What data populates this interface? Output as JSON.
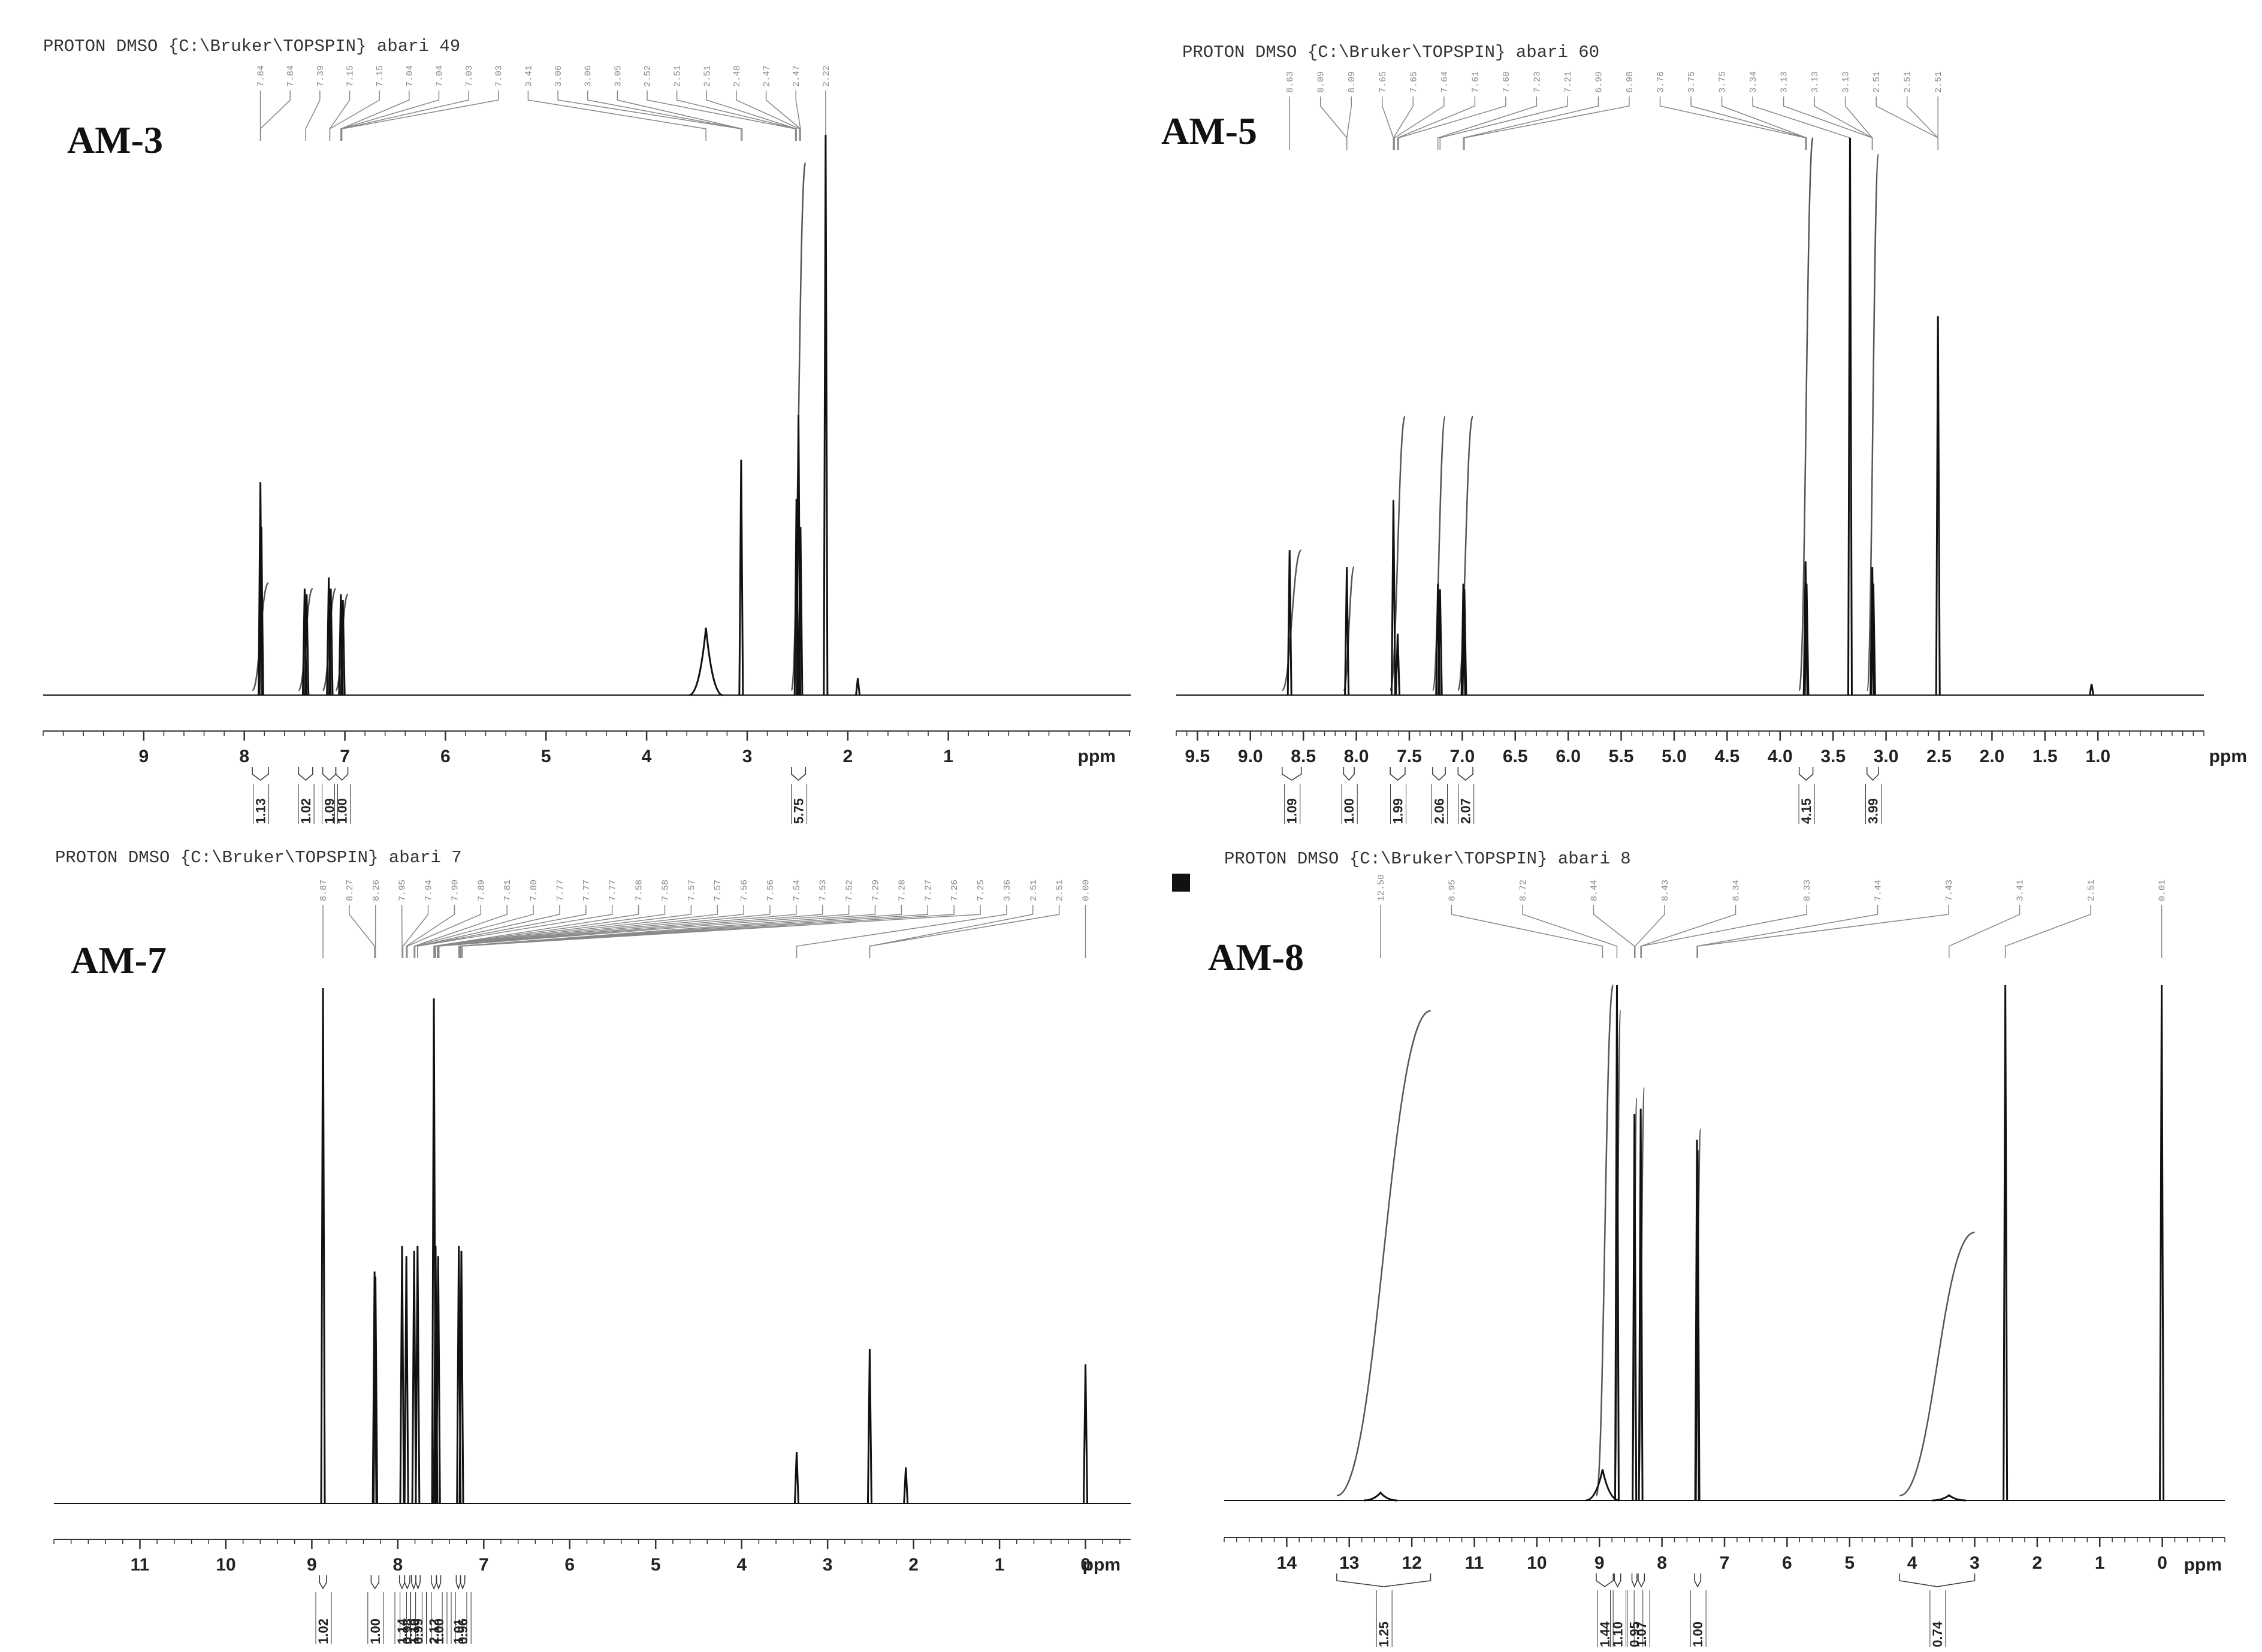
{
  "colors": {
    "spectrum": "#111111",
    "integral": "#555555",
    "peak_label": "#888888",
    "axis": "#333333"
  },
  "figure": {
    "panels": [
      {
        "header": "PROTON DMSO {C:\\Bruker\\TOPSPIN} abari 49",
        "compound": "AM-3",
        "unit": "ppm"
      },
      {
        "header": "PROTON DMSO {C:\\Bruker\\TOPSPIN} abari 60",
        "compound": "AM-5",
        "unit": "ppm"
      },
      {
        "header": "PROTON DMSO {C:\\Bruker\\TOPSPIN} abari 7",
        "compound": "AM-7",
        "unit": "ppm"
      },
      {
        "header": "PROTON DMSO {C:\\Bruker\\TOPSPIN} abari 8",
        "compound": "AM-8",
        "unit": "ppm"
      }
    ]
  },
  "chart_data": [
    {
      "type": "line",
      "title": "AM-3",
      "xlabel": "ppm",
      "xlim": [
        10.0,
        -0.98
      ],
      "x_reversed": true,
      "tick_labels": [
        "9",
        "8",
        "7",
        "6",
        "5",
        "4",
        "3",
        "2",
        "1"
      ],
      "peak_labels": [
        "7.84",
        "7.84",
        "7.39",
        "7.15",
        "7.15",
        "7.04",
        "7.04",
        "7.03",
        "7.03",
        "3.41",
        "3.06",
        "3.06",
        "3.05",
        "2.52",
        "2.51",
        "2.51",
        "2.48",
        "2.47",
        "2.47",
        "2.22"
      ],
      "peaks": [
        {
          "ppm": 7.84,
          "height": 0.38
        },
        {
          "ppm": 7.83,
          "height": 0.3
        },
        {
          "ppm": 7.4,
          "height": 0.19
        },
        {
          "ppm": 7.38,
          "height": 0.18
        },
        {
          "ppm": 7.16,
          "height": 0.21
        },
        {
          "ppm": 7.14,
          "height": 0.19
        },
        {
          "ppm": 7.04,
          "height": 0.18
        },
        {
          "ppm": 7.02,
          "height": 0.17
        },
        {
          "ppm": 3.41,
          "height": 0.12,
          "broad": true
        },
        {
          "ppm": 3.06,
          "height": 0.42
        },
        {
          "ppm": 2.51,
          "height": 0.35
        },
        {
          "ppm": 2.49,
          "height": 0.5
        },
        {
          "ppm": 2.47,
          "height": 0.3
        },
        {
          "ppm": 2.22,
          "height": 1.0
        },
        {
          "ppm": 1.9,
          "height": 0.03
        }
      ],
      "integrals": [
        {
          "from": 7.92,
          "to": 7.76,
          "value": "1.13",
          "height": 0.2
        },
        {
          "from": 7.46,
          "to": 7.32,
          "value": "1.02",
          "height": 0.19
        },
        {
          "from": 7.22,
          "to": 7.09,
          "value": "1.09",
          "height": 0.19
        },
        {
          "from": 7.09,
          "to": 6.97,
          "value": "1.00",
          "height": 0.18
        },
        {
          "from": 2.56,
          "to": 2.42,
          "value": "5.75",
          "height": 0.95
        }
      ]
    },
    {
      "type": "line",
      "title": "AM-5",
      "xlabel": "ppm",
      "xlim": [
        9.7,
        0.0
      ],
      "x_reversed": true,
      "tick_labels": [
        "9.5",
        "9.0",
        "8.5",
        "8.0",
        "7.5",
        "7.0",
        "6.5",
        "6.0",
        "5.5",
        "5.0",
        "4.5",
        "4.0",
        "3.5",
        "3.0",
        "2.5",
        "2.0",
        "1.5",
        "1.0"
      ],
      "peak_labels": [
        "8.63",
        "8.09",
        "8.09",
        "7.65",
        "7.65",
        "7.64",
        "7.61",
        "7.60",
        "7.23",
        "7.21",
        "6.99",
        "6.98",
        "3.76",
        "3.75",
        "3.75",
        "3.34",
        "3.13",
        "3.13",
        "3.13",
        "2.51",
        "2.51",
        "2.51"
      ],
      "peaks": [
        {
          "ppm": 8.63,
          "height": 0.26
        },
        {
          "ppm": 8.09,
          "height": 0.23
        },
        {
          "ppm": 7.65,
          "height": 0.35
        },
        {
          "ppm": 7.61,
          "height": 0.11
        },
        {
          "ppm": 7.23,
          "height": 0.2
        },
        {
          "ppm": 7.21,
          "height": 0.19
        },
        {
          "ppm": 6.99,
          "height": 0.2
        },
        {
          "ppm": 6.98,
          "height": 0.19
        },
        {
          "ppm": 3.76,
          "height": 0.24
        },
        {
          "ppm": 3.75,
          "height": 0.2
        },
        {
          "ppm": 3.34,
          "height": 1.0
        },
        {
          "ppm": 3.13,
          "height": 0.23
        },
        {
          "ppm": 3.12,
          "height": 0.2
        },
        {
          "ppm": 2.51,
          "height": 0.68
        },
        {
          "ppm": 1.06,
          "height": 0.02
        }
      ],
      "integrals": [
        {
          "from": 8.7,
          "to": 8.52,
          "value": "1.09",
          "height": 0.26
        },
        {
          "from": 8.12,
          "to": 8.02,
          "value": "1.00",
          "height": 0.23
        },
        {
          "from": 7.68,
          "to": 7.54,
          "value": "1.99",
          "height": 0.5
        },
        {
          "from": 7.28,
          "to": 7.16,
          "value": "2.06",
          "height": 0.5
        },
        {
          "from": 7.04,
          "to": 6.9,
          "value": "2.07",
          "height": 0.5
        },
        {
          "from": 3.82,
          "to": 3.69,
          "value": "4.15",
          "height": 1.0
        },
        {
          "from": 3.18,
          "to": 3.07,
          "value": "3.99",
          "height": 0.97
        }
      ]
    },
    {
      "type": "line",
      "title": "AM-7",
      "xlabel": "ppm",
      "xlim": [
        12.0,
        -1.0
      ],
      "x_reversed": true,
      "tick_labels": [
        "11",
        "10",
        "9",
        "8",
        "7",
        "6",
        "5",
        "4",
        "3",
        "2",
        "1",
        "0"
      ],
      "peak_labels": [
        "8.87",
        "8.27",
        "8.26",
        "7.95",
        "7.94",
        "7.90",
        "7.89",
        "7.81",
        "7.80",
        "7.77",
        "7.77",
        "7.77",
        "7.58",
        "7.58",
        "7.57",
        "7.57",
        "7.56",
        "7.56",
        "7.54",
        "7.53",
        "7.52",
        "7.29",
        "7.28",
        "7.27",
        "7.26",
        "7.25",
        "3.36",
        "2.51",
        "2.51",
        "0.00"
      ],
      "peaks": [
        {
          "ppm": 8.87,
          "height": 1.0
        },
        {
          "ppm": 8.27,
          "height": 0.45
        },
        {
          "ppm": 8.26,
          "height": 0.44
        },
        {
          "ppm": 7.95,
          "height": 0.5
        },
        {
          "ppm": 7.9,
          "height": 0.48
        },
        {
          "ppm": 7.81,
          "height": 0.49
        },
        {
          "ppm": 7.77,
          "height": 0.5
        },
        {
          "ppm": 7.58,
          "height": 0.98
        },
        {
          "ppm": 7.56,
          "height": 0.5
        },
        {
          "ppm": 7.53,
          "height": 0.48
        },
        {
          "ppm": 7.29,
          "height": 0.5
        },
        {
          "ppm": 7.26,
          "height": 0.49
        },
        {
          "ppm": 3.36,
          "height": 0.1
        },
        {
          "ppm": 2.51,
          "height": 0.3
        },
        {
          "ppm": 2.09,
          "height": 0.07
        },
        {
          "ppm": 0.0,
          "height": 0.27
        }
      ],
      "integrals": [
        {
          "from": 8.91,
          "to": 8.83,
          "value": "1.02"
        },
        {
          "from": 8.31,
          "to": 8.22,
          "value": "1.00"
        },
        {
          "from": 7.98,
          "to": 7.92,
          "value": "1.14"
        },
        {
          "from": 7.92,
          "to": 7.86,
          "value": "0.98"
        },
        {
          "from": 7.84,
          "to": 7.79,
          "value": "1.10"
        },
        {
          "from": 7.79,
          "to": 7.74,
          "value": "0.99"
        },
        {
          "from": 7.61,
          "to": 7.55,
          "value": "2.12"
        },
        {
          "from": 7.55,
          "to": 7.5,
          "value": "1.00"
        },
        {
          "from": 7.32,
          "to": 7.27,
          "value": "1.01"
        },
        {
          "from": 7.27,
          "to": 7.22,
          "value": "0.96"
        }
      ]
    },
    {
      "type": "line",
      "title": "AM-8",
      "xlabel": "ppm",
      "xlim": [
        15.0,
        -1.0
      ],
      "x_reversed": true,
      "tick_labels": [
        "14",
        "13",
        "12",
        "11",
        "10",
        "9",
        "8",
        "7",
        "6",
        "5",
        "4",
        "3",
        "2",
        "1",
        "0"
      ],
      "peak_labels": [
        "12.50",
        "8.95",
        "8.72",
        "8.44",
        "8.43",
        "8.34",
        "8.33",
        "7.44",
        "7.43",
        "3.41",
        "2.51",
        "0.01"
      ],
      "peaks": [
        {
          "ppm": 12.5,
          "height": 0.015,
          "broad": true
        },
        {
          "ppm": 8.95,
          "height": 0.06,
          "broad": true
        },
        {
          "ppm": 8.72,
          "height": 1.0
        },
        {
          "ppm": 8.44,
          "height": 0.75
        },
        {
          "ppm": 8.34,
          "height": 0.76
        },
        {
          "ppm": 7.44,
          "height": 0.7
        },
        {
          "ppm": 7.43,
          "height": 0.68
        },
        {
          "ppm": 3.41,
          "height": 0.01,
          "broad": true
        },
        {
          "ppm": 2.51,
          "height": 1.0
        },
        {
          "ppm": 0.01,
          "height": 1.0
        }
      ],
      "integrals": [
        {
          "from": 13.2,
          "to": 11.7,
          "value": "1.25",
          "height": 0.95
        },
        {
          "from": 9.05,
          "to": 8.78,
          "value": "1.44",
          "height": 1.0
        },
        {
          "from": 8.76,
          "to": 8.66,
          "value": "1.10",
          "height": 0.95
        },
        {
          "from": 8.48,
          "to": 8.4,
          "value": "0.95",
          "height": 0.78
        },
        {
          "from": 8.38,
          "to": 8.28,
          "value": "1.07",
          "height": 0.8
        },
        {
          "from": 7.48,
          "to": 7.38,
          "value": "1.00",
          "height": 0.72
        },
        {
          "from": 4.2,
          "to": 3.0,
          "value": "0.74",
          "height": 0.52
        }
      ]
    }
  ]
}
